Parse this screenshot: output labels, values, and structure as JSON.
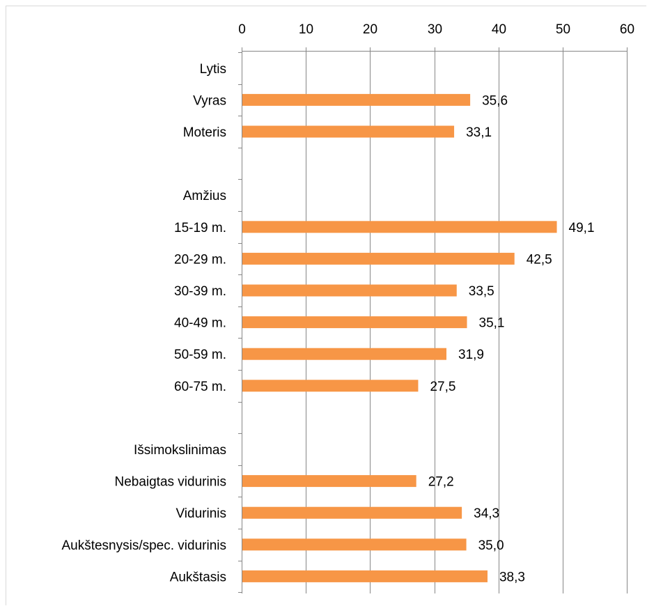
{
  "chart_data": {
    "type": "bar",
    "orientation": "horizontal",
    "categories": [
      "Lytis",
      "Vyras",
      "Moteris",
      "",
      "Amžius",
      "15-19 m.",
      "20-29 m.",
      "30-39 m.",
      "40-49 m.",
      "50-59 m.",
      "60-75 m.",
      "",
      "Išsimokslinimas",
      "Nebaigtas vidurinis",
      "Vidurinis",
      "Aukštesnysis/spec. vidurinis",
      "Aukštasis"
    ],
    "values": [
      null,
      35.6,
      33.1,
      null,
      null,
      49.1,
      42.5,
      33.5,
      35.1,
      31.9,
      27.5,
      null,
      null,
      27.2,
      34.3,
      35.0,
      38.3
    ],
    "value_labels": [
      "",
      "35,6",
      "33,1",
      "",
      "",
      "49,1",
      "42,5",
      "33,5",
      "35,1",
      "31,9",
      "27,5",
      "",
      "",
      "27,2",
      "34,3",
      "35,0",
      "38,3"
    ],
    "xlim": [
      0,
      60
    ],
    "x_ticks": [
      0,
      10,
      20,
      30,
      40,
      50,
      60
    ],
    "x_axis_position": "top",
    "grid": true,
    "bar_color": "#F79646",
    "gridline_color": "#868686",
    "title": "",
    "xlabel": "",
    "ylabel": ""
  }
}
